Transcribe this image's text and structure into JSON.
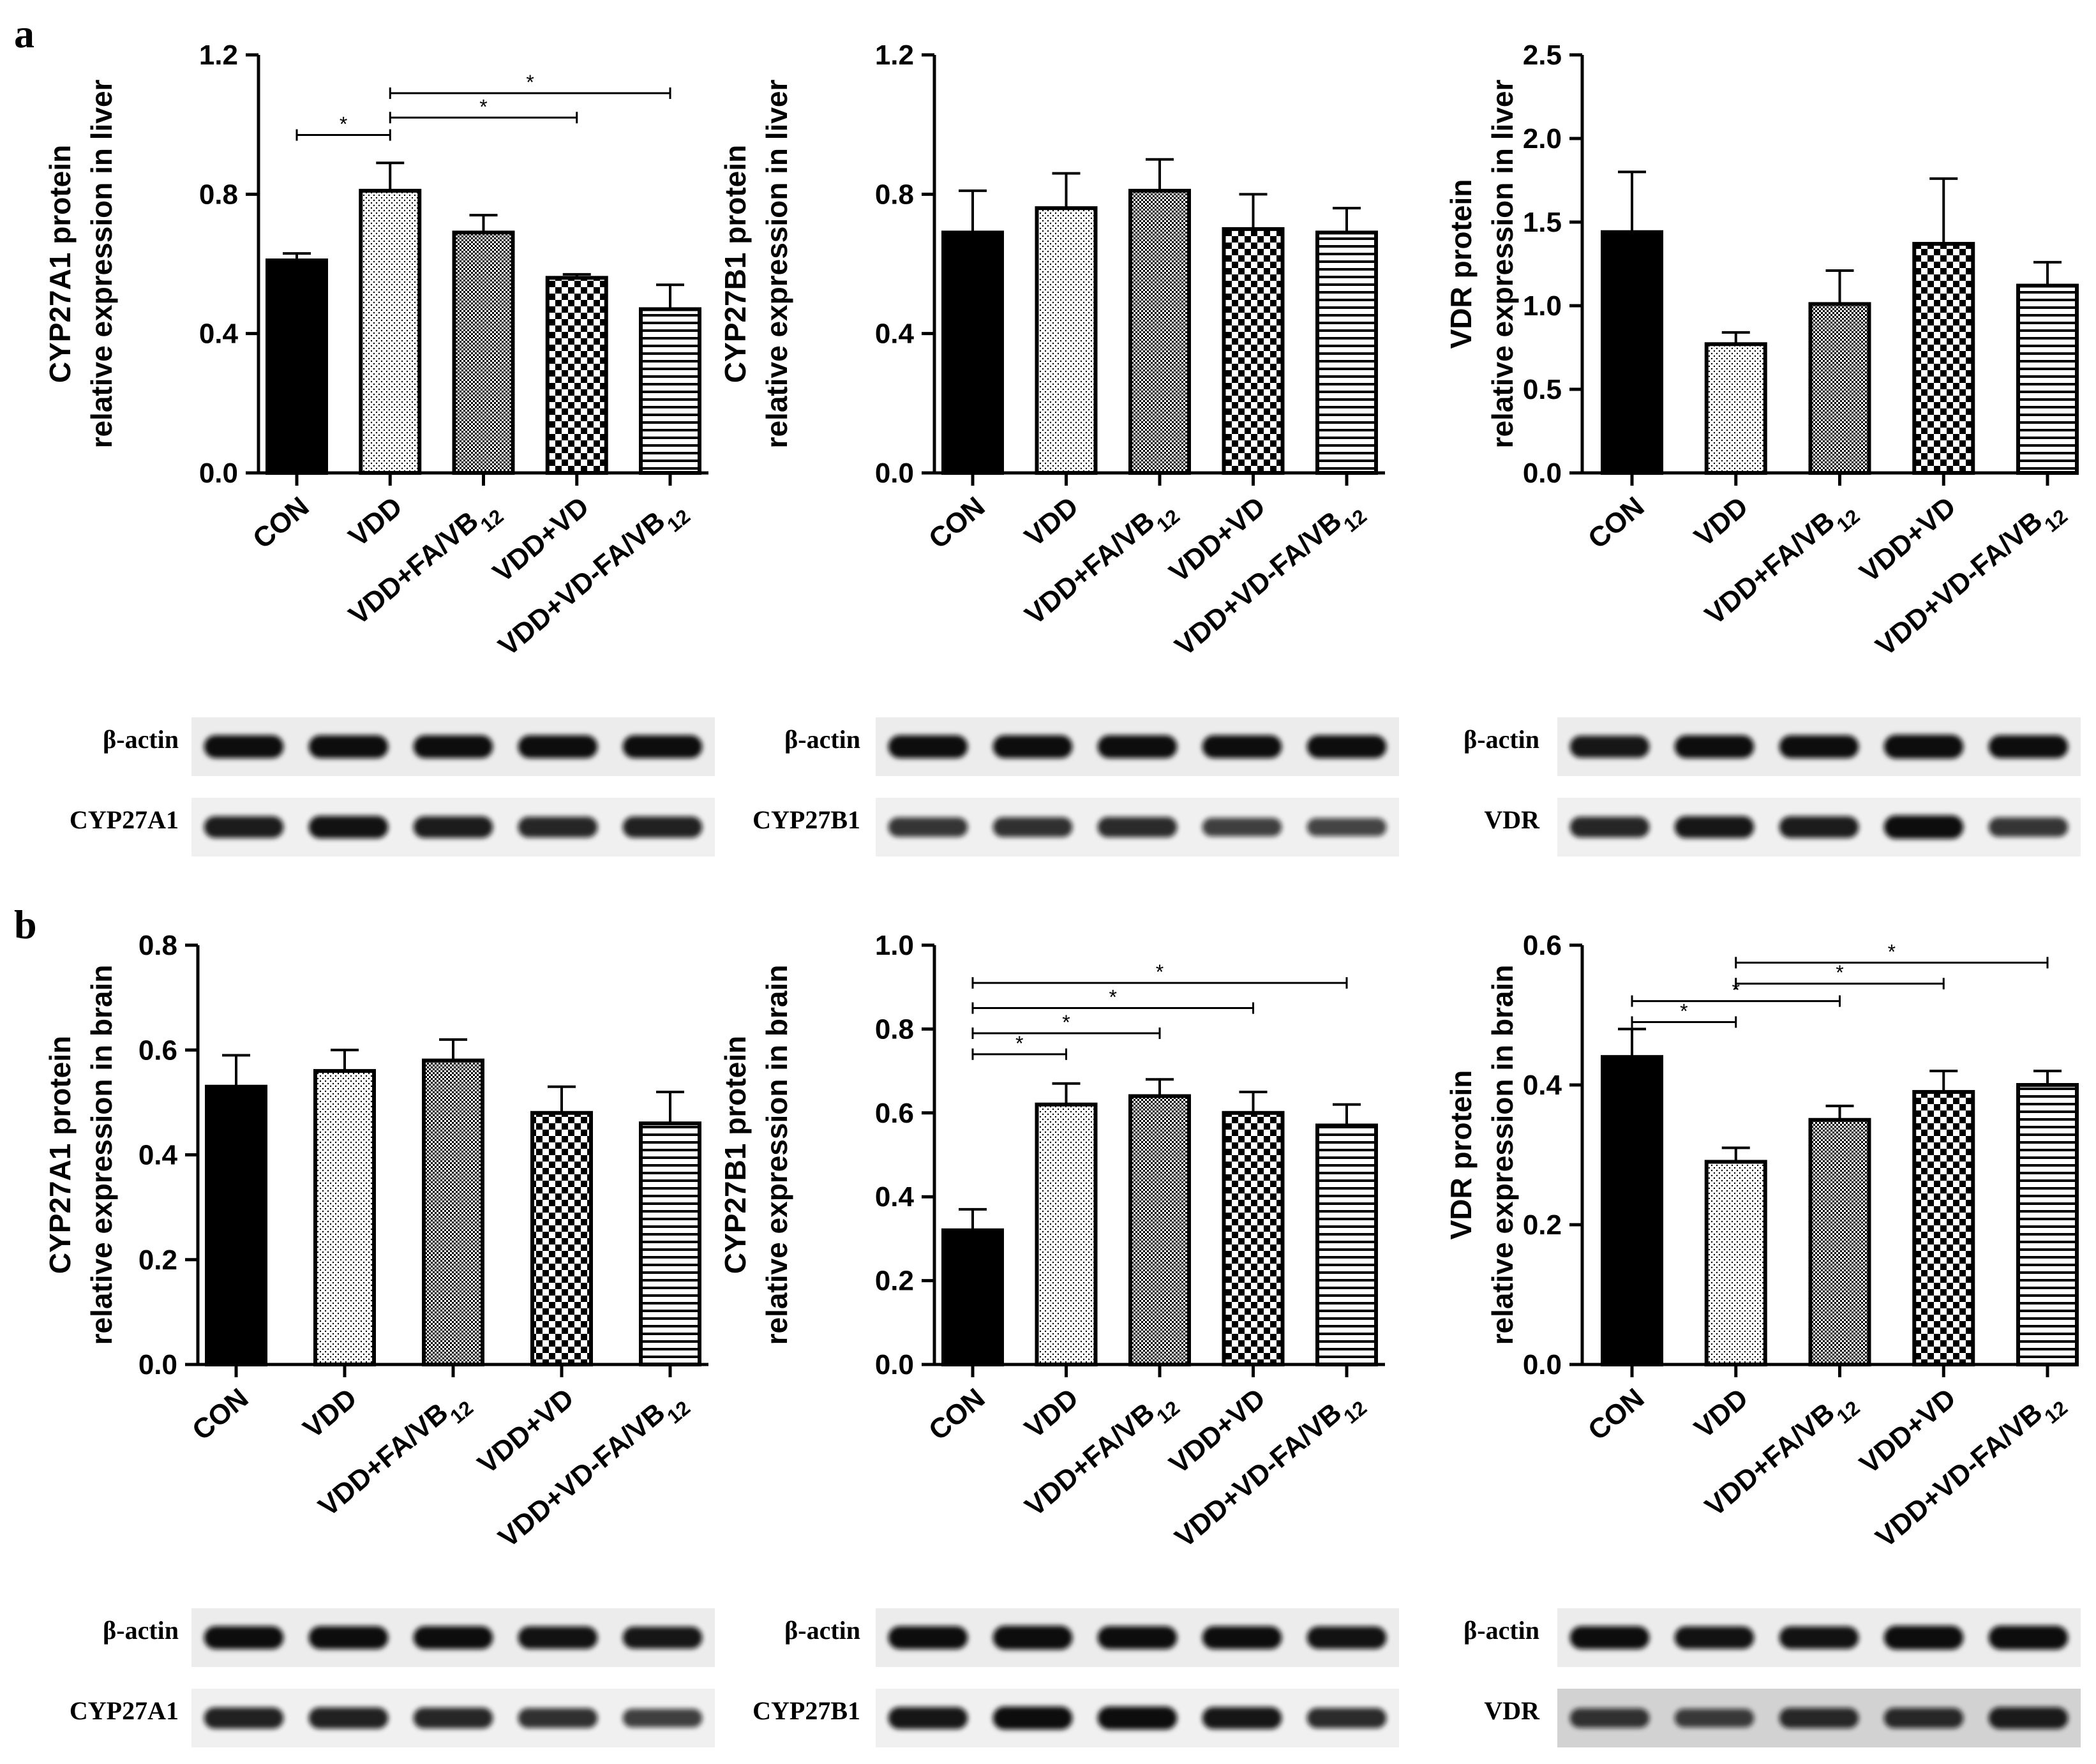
{
  "panels": {
    "a": {
      "label": "a"
    },
    "b": {
      "label": "b"
    }
  },
  "group_labels": [
    "CON",
    "VDD",
    "VDD+FA/VB12",
    "VDD+VD",
    "VDD+VD-FA/VB12"
  ],
  "blots": [
    {
      "loading_control": "β-actin",
      "target": "CYP27A1"
    },
    {
      "loading_control": "β-actin",
      "target": "CYP27B1"
    },
    {
      "loading_control": "β-actin",
      "target": "VDR"
    },
    {
      "loading_control": "β-actin",
      "target": "CYP27A1"
    },
    {
      "loading_control": "β-actin",
      "target": "CYP27B1"
    },
    {
      "loading_control": "β-actin",
      "target": "VDR"
    }
  ],
  "chart_data": [
    {
      "type": "bar",
      "panel": "a",
      "ylabel_line1": "CYP27A1 protein",
      "ylabel_line2": "relative expression in liver",
      "categories": [
        "CON",
        "VDD",
        "VDD+FA/VB12",
        "VDD+VD",
        "VDD+VD-FA/VB12"
      ],
      "values": [
        0.61,
        0.81,
        0.69,
        0.56,
        0.47
      ],
      "errors": [
        0.02,
        0.08,
        0.05,
        0.01,
        0.07
      ],
      "ylim": [
        0,
        1.2
      ],
      "yticks": [
        0.0,
        0.4,
        0.8,
        1.2
      ],
      "tick_labels": [
        "0.0",
        "0.4",
        "0.8",
        "1.2"
      ],
      "significance": [
        {
          "from": 0,
          "to": 1,
          "y": 0.97,
          "label": "*"
        },
        {
          "from": 1,
          "to": 3,
          "y": 1.02,
          "label": "*"
        },
        {
          "from": 1,
          "to": 4,
          "y": 1.09,
          "label": "*"
        }
      ]
    },
    {
      "type": "bar",
      "panel": "a",
      "ylabel_line1": "CYP27B1 protein",
      "ylabel_line2": "relative expression in liver",
      "categories": [
        "CON",
        "VDD",
        "VDD+FA/VB12",
        "VDD+VD",
        "VDD+VD-FA/VB12"
      ],
      "values": [
        0.69,
        0.76,
        0.81,
        0.7,
        0.69
      ],
      "errors": [
        0.12,
        0.1,
        0.09,
        0.1,
        0.07
      ],
      "ylim": [
        0,
        1.2
      ],
      "yticks": [
        0.0,
        0.4,
        0.8,
        1.2
      ],
      "tick_labels": [
        "0.0",
        "0.4",
        "0.8",
        "1.2"
      ],
      "significance": []
    },
    {
      "type": "bar",
      "panel": "a",
      "ylabel_line1": "VDR protein",
      "ylabel_line2": "relative expression in liver",
      "categories": [
        "CON",
        "VDD",
        "VDD+FA/VB12",
        "VDD+VD",
        "VDD+VD-FA/VB12"
      ],
      "values": [
        1.44,
        0.77,
        1.01,
        1.37,
        1.12
      ],
      "errors": [
        0.36,
        0.07,
        0.2,
        0.39,
        0.14
      ],
      "ylim": [
        0,
        2.5
      ],
      "yticks": [
        0.0,
        0.5,
        1.0,
        1.5,
        2.0,
        2.5
      ],
      "tick_labels": [
        "0.0",
        "0.5",
        "1.0",
        "1.5",
        "2.0",
        "2.5"
      ],
      "significance": []
    },
    {
      "type": "bar",
      "panel": "b",
      "ylabel_line1": "CYP27A1 protein",
      "ylabel_line2": "relative expression in brain",
      "categories": [
        "CON",
        "VDD",
        "VDD+FA/VB12",
        "VDD+VD",
        "VDD+VD-FA/VB12"
      ],
      "values": [
        0.53,
        0.56,
        0.58,
        0.48,
        0.46
      ],
      "errors": [
        0.06,
        0.04,
        0.04,
        0.05,
        0.06
      ],
      "ylim": [
        0,
        0.8
      ],
      "yticks": [
        0.0,
        0.2,
        0.4,
        0.6,
        0.8
      ],
      "tick_labels": [
        "0.0",
        "0.2",
        "0.4",
        "0.6",
        "0.8"
      ],
      "significance": []
    },
    {
      "type": "bar",
      "panel": "b",
      "ylabel_line1": "CYP27B1 protein",
      "ylabel_line2": "relative expression in brain",
      "categories": [
        "CON",
        "VDD",
        "VDD+FA/VB12",
        "VDD+VD",
        "VDD+VD-FA/VB12"
      ],
      "values": [
        0.32,
        0.62,
        0.64,
        0.6,
        0.57
      ],
      "errors": [
        0.05,
        0.05,
        0.04,
        0.05,
        0.05
      ],
      "ylim": [
        0,
        1.0
      ],
      "yticks": [
        0.0,
        0.2,
        0.4,
        0.6,
        0.8,
        1.0
      ],
      "tick_labels": [
        "0.0",
        "0.2",
        "0.4",
        "0.6",
        "0.8",
        "1.0"
      ],
      "significance": [
        {
          "from": 0,
          "to": 1,
          "y": 0.74,
          "label": "*"
        },
        {
          "from": 0,
          "to": 2,
          "y": 0.79,
          "label": "*"
        },
        {
          "from": 0,
          "to": 3,
          "y": 0.85,
          "label": "*"
        },
        {
          "from": 0,
          "to": 4,
          "y": 0.91,
          "label": "*"
        }
      ]
    },
    {
      "type": "bar",
      "panel": "b",
      "ylabel_line1": "VDR protein",
      "ylabel_line2": "relative expression in brain",
      "categories": [
        "CON",
        "VDD",
        "VDD+FA/VB12",
        "VDD+VD",
        "VDD+VD-FA/VB12"
      ],
      "values": [
        0.44,
        0.29,
        0.35,
        0.39,
        0.4
      ],
      "errors": [
        0.04,
        0.02,
        0.02,
        0.03,
        0.02
      ],
      "ylim": [
        0,
        0.6
      ],
      "yticks": [
        0.0,
        0.2,
        0.4,
        0.6
      ],
      "tick_labels": [
        "0.0",
        "0.2",
        "0.4",
        "0.6"
      ],
      "significance": [
        {
          "from": 0,
          "to": 1,
          "y": 0.49,
          "label": "*"
        },
        {
          "from": 0,
          "to": 2,
          "y": 0.52,
          "label": "*"
        },
        {
          "from": 1,
          "to": 3,
          "y": 0.545,
          "label": "*"
        },
        {
          "from": 1,
          "to": 4,
          "y": 0.575,
          "label": "*"
        }
      ]
    }
  ]
}
